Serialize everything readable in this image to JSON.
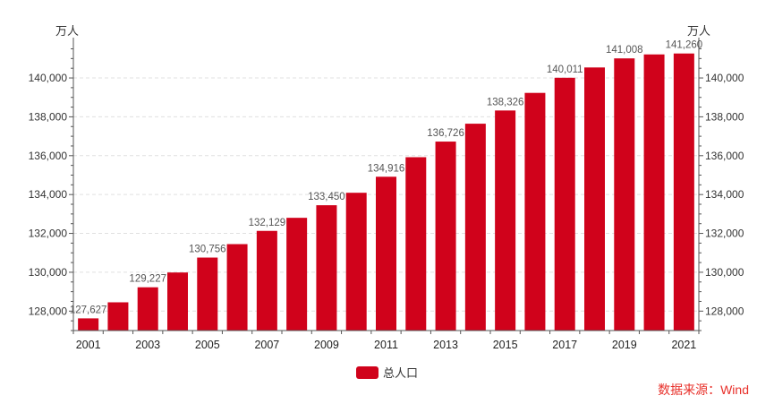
{
  "chart_data": {
    "type": "bar",
    "y_unit_left": "万人",
    "y_unit_right": "万人",
    "categories": [
      "2001",
      "2002",
      "2003",
      "2004",
      "2005",
      "2006",
      "2007",
      "2008",
      "2009",
      "2010",
      "2011",
      "2012",
      "2013",
      "2014",
      "2015",
      "2016",
      "2017",
      "2018",
      "2019",
      "2020",
      "2021"
    ],
    "x_tick_labels": [
      "2001",
      "2003",
      "2005",
      "2007",
      "2009",
      "2011",
      "2013",
      "2015",
      "2017",
      "2019",
      "2021"
    ],
    "series": [
      {
        "name": "总人口",
        "color": "#D0021B",
        "values": [
          127627,
          128453,
          129227,
          129988,
          130756,
          131448,
          132129,
          132802,
          133450,
          134091,
          134916,
          135922,
          136726,
          137646,
          138326,
          139232,
          140011,
          140541,
          141008,
          141212,
          141260
        ]
      }
    ],
    "data_labels": {
      "2001": "127,627",
      "2003": "129,227",
      "2005": "130,756",
      "2007": "132,129",
      "2009": "133,450",
      "2011": "134,916",
      "2013": "136,726",
      "2015": "138,326",
      "2017": "140,011",
      "2019": "141,008",
      "2021": "141,260"
    },
    "ylim": [
      127000,
      141800
    ],
    "y_ticks": [
      128000,
      130000,
      132000,
      134000,
      136000,
      138000,
      140000
    ],
    "y_tick_labels": [
      "128,000",
      "130,000",
      "132,000",
      "134,000",
      "136,000",
      "138,000",
      "140,000"
    ],
    "grid": true,
    "legend_position": "bottom-center"
  },
  "legend": {
    "label": "总人口",
    "color": "#D0021B"
  },
  "source": {
    "text": "数据来源：Wind",
    "color": "#E8302A"
  }
}
